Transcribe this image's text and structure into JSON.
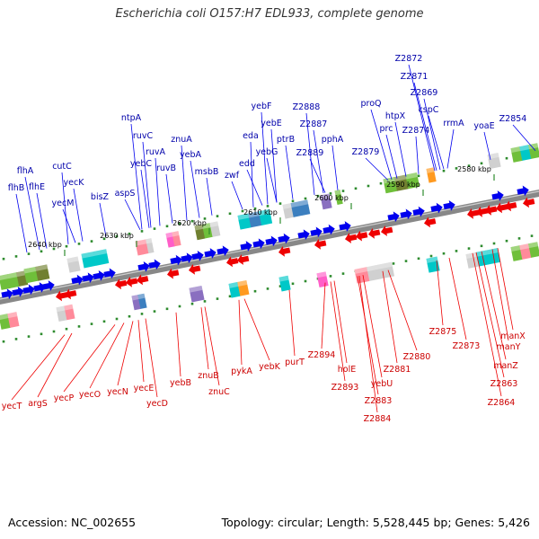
{
  "header": {
    "title": "Escherichia coli O157:H7 EDL933, complete genome"
  },
  "footer": {
    "accession": "Accession: NC_002655",
    "summary": "Topology: circular; Length: 5,528,445 bp; Genes: 5,426"
  },
  "colors": {
    "forward": "#0000ee",
    "reverse": "#ee0000",
    "backbone": "#888888",
    "tick": "#2e8b2e",
    "label_forward": "#0000aa",
    "label_reverse": "#cc0000"
  },
  "scale_labels": [
    "2640 kbp",
    "2630 kbp",
    "2620 kbp",
    "2610 kbp",
    "2600 kbp",
    "2590 kbp",
    "2580 kbp"
  ],
  "forward_genes": [
    "flhB",
    "flhA",
    "flhE",
    "yecM",
    "cutC",
    "yecK",
    "bisZ",
    "aspS",
    "ntpA",
    "ruvC",
    "yebC",
    "ruvA",
    "ruvB",
    "znuA",
    "yebA",
    "msbB",
    "zwf",
    "eda",
    "edd",
    "yebF",
    "yebE",
    "yebG",
    "ptrB",
    "Z2888",
    "Z2887",
    "Z2889",
    "pphA",
    "Z2879",
    "proQ",
    "prc",
    "htpX",
    "Z2874",
    "Z2872",
    "Z2871",
    "Z2869",
    "cspC",
    "rrmA",
    "yoaE",
    "Z2854"
  ],
  "reverse_genes": [
    "yecT",
    "argS",
    "yecP",
    "yecO",
    "yecN",
    "yecE",
    "yecD",
    "yebB",
    "znuB",
    "znuC",
    "pykA",
    "yebK",
    "purT",
    "Z2894",
    "Z2893",
    "holE",
    "yebU",
    "Z2883",
    "Z2884",
    "Z2881",
    "Z2880",
    "Z2875",
    "Z2873",
    "manZ",
    "manY",
    "manX",
    "Z2863",
    "Z2864"
  ]
}
